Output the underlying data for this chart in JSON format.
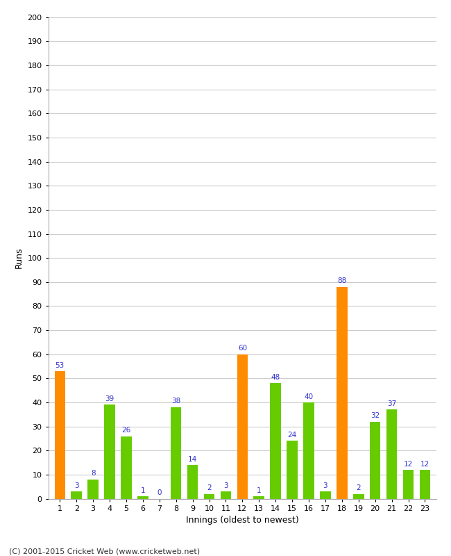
{
  "innings": [
    1,
    2,
    3,
    4,
    5,
    6,
    7,
    8,
    9,
    10,
    11,
    12,
    13,
    14,
    15,
    16,
    17,
    18,
    19,
    20,
    21,
    22,
    23
  ],
  "values": [
    53,
    3,
    8,
    39,
    26,
    1,
    0,
    38,
    14,
    2,
    3,
    60,
    1,
    48,
    24,
    40,
    3,
    88,
    2,
    32,
    37,
    12,
    12
  ],
  "colors": [
    "#ff8c00",
    "#66cc00",
    "#66cc00",
    "#66cc00",
    "#66cc00",
    "#66cc00",
    "#66cc00",
    "#66cc00",
    "#66cc00",
    "#66cc00",
    "#66cc00",
    "#ff8c00",
    "#66cc00",
    "#66cc00",
    "#66cc00",
    "#66cc00",
    "#66cc00",
    "#ff8c00",
    "#66cc00",
    "#66cc00",
    "#66cc00",
    "#66cc00",
    "#66cc00"
  ],
  "xlabel": "Innings (oldest to newest)",
  "ylabel": "Runs",
  "ylim": [
    0,
    200
  ],
  "ytick_step": 10,
  "label_color": "#3333cc",
  "footer": "(C) 2001-2015 Cricket Web (www.cricketweb.net)",
  "bg_color": "#ffffff",
  "plot_bg_color": "#ffffff",
  "grid_color": "#cccccc",
  "spine_color": "#aaaaaa",
  "tick_color": "#000000",
  "bar_width": 0.65
}
